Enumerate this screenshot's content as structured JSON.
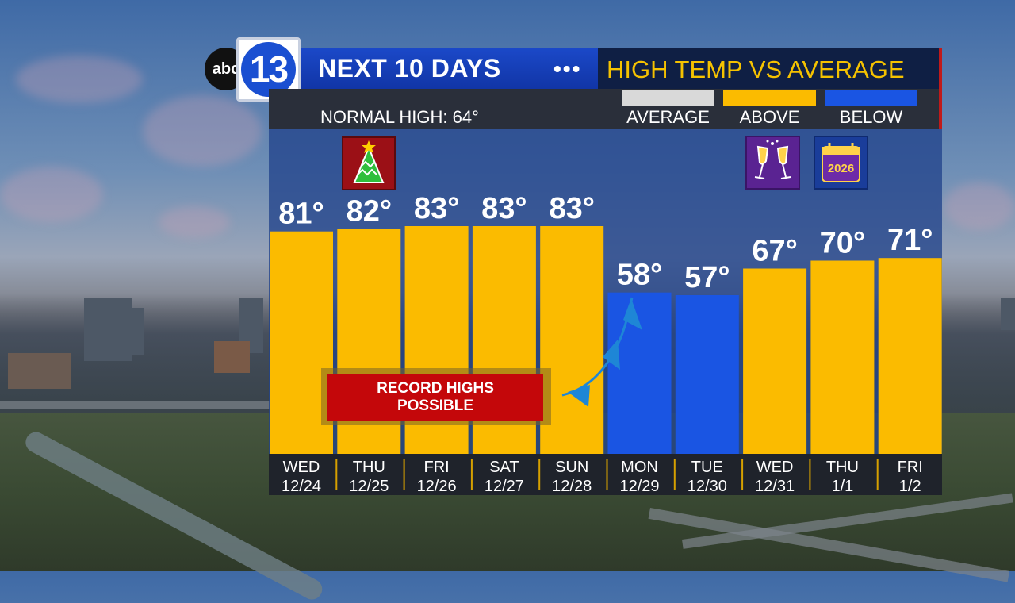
{
  "logo": {
    "network": "abc",
    "channel": "13"
  },
  "header": {
    "title": "NEXT 10 DAYS",
    "subtitle": "HIGH TEMP VS AVERAGE",
    "normal_high": "NORMAL HIGH: 64°"
  },
  "legend": [
    {
      "label": "AVERAGE",
      "color": "#d9d9d9"
    },
    {
      "label": "ABOVE",
      "color": "#fbbb00"
    },
    {
      "label": "BELOW",
      "color": "#1a55e3"
    }
  ],
  "callout": {
    "line1": "RECORD HIGHS",
    "line2": "POSSIBLE"
  },
  "icons": [
    {
      "name": "christmas-tree-icon",
      "day_index": 1
    },
    {
      "name": "champagne-toast-icon",
      "day_index": 7
    },
    {
      "name": "new-year-calendar-icon",
      "day_index": 8,
      "text": "2026"
    }
  ],
  "chart_data": {
    "type": "bar",
    "categories": [
      "WED 12/24",
      "THU 12/25",
      "FRI 12/26",
      "SAT 12/27",
      "SUN 12/28",
      "MON 12/29",
      "TUE 12/30",
      "WED 12/31",
      "THU 1/1",
      "FRI 1/2"
    ],
    "days": [
      "WED",
      "THU",
      "FRI",
      "SAT",
      "SUN",
      "MON",
      "TUE",
      "WED",
      "THU",
      "FRI"
    ],
    "dates": [
      "12/24",
      "12/25",
      "12/26",
      "12/27",
      "12/28",
      "12/29",
      "12/30",
      "12/31",
      "1/1",
      "1/2"
    ],
    "values": [
      81,
      82,
      83,
      83,
      83,
      58,
      57,
      67,
      70,
      71
    ],
    "labels": [
      "81°",
      "82°",
      "83°",
      "83°",
      "83°",
      "58°",
      "57°",
      "67°",
      "70°",
      "71°"
    ],
    "status": [
      "above",
      "above",
      "above",
      "above",
      "above",
      "below",
      "below",
      "above",
      "above",
      "above"
    ],
    "reference_line": {
      "label": "NORMAL HIGH",
      "value": 64
    },
    "colors": {
      "above": "#fbbb00",
      "below": "#1a55e3",
      "average": "#d9d9d9"
    }
  }
}
